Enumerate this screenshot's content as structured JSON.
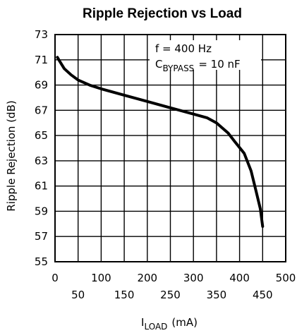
{
  "chart_data": {
    "type": "line",
    "title": "Ripple Rejection vs Load",
    "ylabel": "Ripple Rejection (dB)",
    "xlabel": {
      "main": "I",
      "sub": "LOAD",
      "unit": "(mA)"
    },
    "xlim": [
      0,
      500
    ],
    "ylim": [
      55,
      73
    ],
    "x_ticks_upper": [
      "0",
      "100",
      "200",
      "300",
      "400",
      "500"
    ],
    "x_ticks_lower": [
      "50",
      "150",
      "250",
      "350",
      "450"
    ],
    "y_ticks": [
      "73",
      "71",
      "69",
      "67",
      "65",
      "63",
      "61",
      "59",
      "57",
      "55"
    ],
    "grid": true,
    "annotations": {
      "line1": "f = 400 Hz",
      "line2_main": "C",
      "line2_sub": "BYPASS",
      "line2_rest": "= 10 nF"
    },
    "series": [
      {
        "x": [
          5,
          10,
          20,
          35,
          50,
          75,
          100,
          150,
          200,
          250,
          300,
          330,
          350,
          375,
          390,
          410,
          425,
          435,
          445,
          450
        ],
        "y": [
          71.2,
          70.9,
          70.3,
          69.8,
          69.4,
          69.0,
          68.7,
          68.2,
          67.7,
          67.2,
          66.7,
          66.4,
          66.0,
          65.2,
          64.5,
          63.6,
          62.2,
          60.7,
          59.2,
          57.8
        ]
      }
    ]
  }
}
